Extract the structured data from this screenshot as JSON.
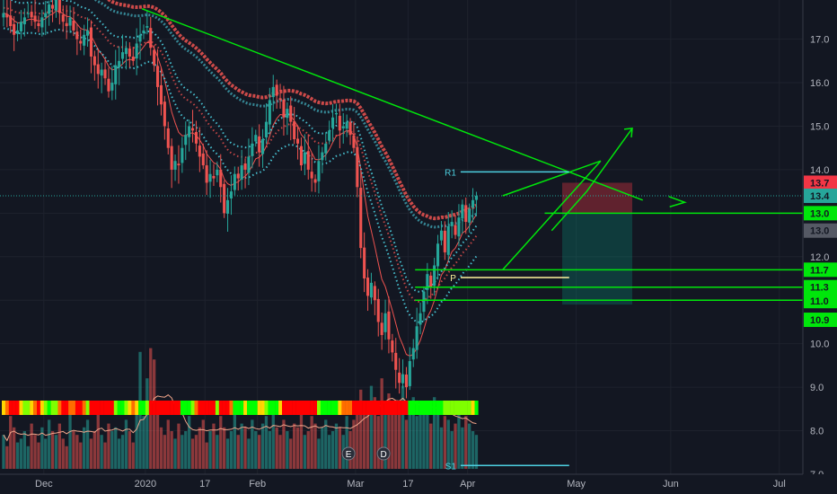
{
  "chart_data": {
    "type": "candlestick",
    "y_ticks": [
      "7.0",
      "8.0",
      "9.0",
      "10.0",
      "11.0",
      "12.0",
      "13.0",
      "14.0",
      "15.0",
      "16.0",
      "17.0"
    ],
    "ylim": [
      7.0,
      17.9
    ],
    "x_ticks": [
      {
        "label": "Dec",
        "bar": 12
      },
      {
        "label": "2020",
        "bar": 41
      },
      {
        "label": "17",
        "bar": 58
      },
      {
        "label": "Feb",
        "bar": 73
      },
      {
        "label": "Mar",
        "bar": 101
      },
      {
        "label": "17",
        "bar": 116
      },
      {
        "label": "Apr",
        "bar": 133
      },
      {
        "label": "May",
        "bar": 164
      },
      {
        "label": "Jun",
        "bar": 191
      },
      {
        "label": "Jul",
        "bar": 222
      }
    ],
    "closes": [
      17.6,
      17.5,
      17.3,
      17.1,
      17.2,
      17.4,
      17.5,
      17.6,
      17.5,
      17.4,
      17.3,
      17.5,
      17.6,
      17.8,
      17.7,
      17.9,
      17.6,
      17.4,
      17.3,
      17.5,
      17.2,
      17.0,
      16.9,
      17.1,
      17.2,
      16.6,
      16.4,
      16.2,
      16.3,
      16.1,
      15.8,
      16.0,
      16.4,
      16.5,
      16.7,
      16.8,
      16.6,
      16.5,
      16.9,
      17.1,
      17.2,
      17.3,
      16.8,
      16.4,
      15.9,
      15.5,
      15.0,
      14.5,
      14.0,
      14.2,
      14.1,
      14.5,
      14.8,
      15.0,
      14.9,
      14.6,
      14.3,
      14.1,
      13.7,
      13.9,
      13.8,
      14.0,
      13.6,
      13.0,
      13.3,
      13.5,
      13.9,
      13.8,
      14.1,
      14.0,
      14.3,
      14.6,
      14.8,
      14.4,
      14.7,
      15.1,
      15.6,
      15.9,
      15.7,
      15.6,
      15.2,
      15.4,
      15.1,
      14.7,
      14.6,
      14.1,
      14.4,
      14.0,
      13.8,
      13.7,
      14.2,
      14.4,
      14.6,
      14.9,
      15.2,
      15.3,
      14.9,
      15.0,
      15.1,
      14.8,
      14.5,
      13.6,
      12.2,
      11.5,
      11.1,
      11.4,
      11.0,
      10.5,
      10.2,
      10.7,
      10.1,
      9.8,
      9.4,
      9.1,
      9.3,
      9.0,
      9.6,
      9.9,
      10.4,
      10.7,
      11.2,
      11.6,
      11.3,
      11.8,
      12.3,
      12.6,
      12.1,
      12.7,
      12.8,
      12.5,
      12.9,
      13.2,
      12.8,
      13.1,
      13.3,
      13.4
    ],
    "volumes": [
      0.9,
      0.6,
      1.4,
      1.1,
      0.7,
      0.8,
      1.0,
      0.6,
      1.2,
      0.9,
      0.7,
      1.1,
      0.8,
      1.3,
      1.0,
      0.9,
      1.2,
      0.8,
      0.6,
      1.5,
      1.0,
      0.9,
      0.7,
      1.1,
      1.3,
      0.8,
      1.0,
      1.6,
      0.9,
      0.7,
      1.2,
      1.0,
      1.1,
      0.8,
      0.9,
      1.3,
      1.0,
      0.7,
      1.8,
      3.1,
      1.4,
      2.4,
      3.2,
      2.9,
      1.5,
      1.1,
      0.9,
      1.3,
      1.0,
      0.8,
      1.2,
      0.9,
      1.0,
      1.4,
      0.8,
      0.9,
      1.1,
      1.3,
      0.7,
      1.0,
      1.2,
      0.9,
      1.4,
      1.1,
      0.8,
      1.0,
      1.5,
      0.9,
      1.2,
      1.1,
      0.8,
      1.3,
      1.0,
      0.9,
      1.2,
      1.4,
      1.0,
      1.6,
      1.1,
      0.9,
      1.3,
      1.0,
      0.8,
      1.2,
      1.1,
      1.5,
      0.9,
      1.0,
      1.4,
      1.2,
      0.8,
      1.1,
      1.3,
      0.9,
      1.0,
      1.2,
      1.1,
      0.9,
      1.4,
      1.0,
      1.3,
      1.6,
      2.1,
      1.8,
      1.5,
      2.2,
      1.9,
      1.4,
      2.4,
      1.6,
      2.0,
      1.8,
      1.5,
      1.7,
      2.2,
      1.3,
      1.6,
      1.9,
      1.4,
      1.7,
      1.8,
      1.5,
      1.2,
      1.9,
      1.6,
      1.1,
      1.4,
      1.3,
      1.0,
      1.2,
      1.5,
      1.1,
      1.4,
      1.2,
      1.0,
      0.9
    ],
    "levels": [
      {
        "label": "R1",
        "value": 13.95
      },
      {
        "label": "P",
        "value": 11.52
      },
      {
        "label": "S1",
        "value": 7.2
      }
    ],
    "horizontal_lines": [
      11.7,
      11.3,
      11.0,
      13.0
    ],
    "price_badges": [
      {
        "label": "13.7",
        "value": 13.7,
        "color": "#f23645"
      },
      {
        "label": "13.4",
        "value": 13.4,
        "color": "#26a69a"
      },
      {
        "label": "13.0",
        "value": 13.0,
        "color": "#00e60b"
      },
      {
        "label": "13.0",
        "value": 12.6,
        "color": "#555964"
      },
      {
        "label": "11.7",
        "value": 11.7,
        "color": "#00e60b"
      },
      {
        "label": "11.3",
        "value": 11.3,
        "color": "#00e60b"
      },
      {
        "label": "11.0",
        "value": 10.98,
        "color": "#00e60b"
      },
      {
        "label": "10.9",
        "value": 10.55,
        "color": "#00e60b"
      }
    ],
    "events": [
      {
        "label": "E",
        "bar": 99
      },
      {
        "label": "D",
        "bar": 109
      }
    ],
    "colors": {
      "up": "#26a69a",
      "down": "#ef5350",
      "trendline": "#00e60b",
      "pivot": "#fff59d",
      "ema_fast": "#ef5350",
      "band_fast": "#4dd0e1",
      "band_slow": "#ef5350"
    }
  }
}
